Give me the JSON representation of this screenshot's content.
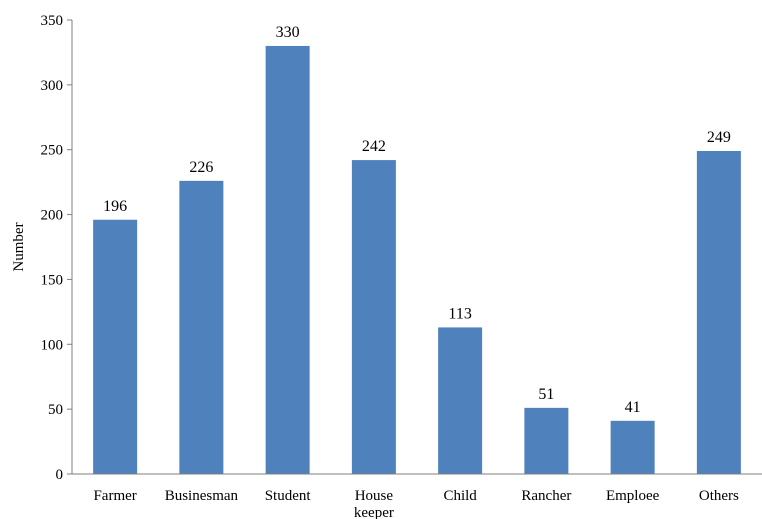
{
  "chart_data": {
    "type": "bar",
    "title": "",
    "xlabel": "",
    "ylabel": "Number",
    "ylim": [
      0,
      350
    ],
    "yticks": [
      0,
      50,
      100,
      150,
      200,
      250,
      300,
      350
    ],
    "categories": [
      "Farmer",
      "Businesman",
      "Student",
      "House keeper",
      "Child",
      "Rancher",
      "Emploee",
      "Others"
    ],
    "values": [
      196,
      226,
      330,
      242,
      113,
      51,
      41,
      249
    ],
    "data_labels": [
      "196",
      "226",
      "330",
      "242",
      "113",
      "51",
      "41",
      "249"
    ],
    "grid": false,
    "legend": "none",
    "bar_color": "#4f81bd"
  }
}
